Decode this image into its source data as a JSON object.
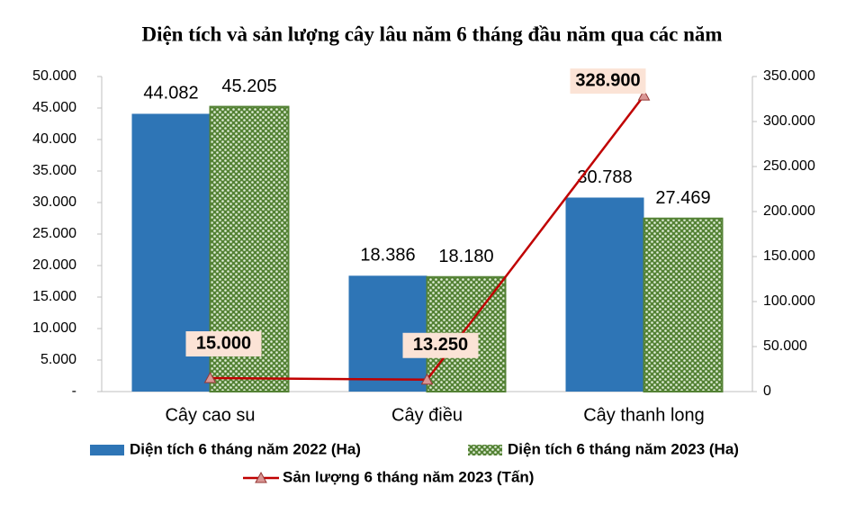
{
  "chart_data": {
    "type": "bar",
    "title": "Diện tích và sản lượng cây lâu năm 6 tháng đầu năm qua các năm",
    "categories": [
      "Cây cao su",
      "Cây điều",
      "Cây thanh long"
    ],
    "series": [
      {
        "name": "Diện tích 6 tháng năm 2022 (Ha)",
        "color": "#2e75b6",
        "values": [
          44082,
          18386,
          30788
        ],
        "value_labels": [
          "44.082",
          "18.386",
          "30.788"
        ]
      },
      {
        "name": "Diện tích 6 tháng năm 2023 (Ha)",
        "color": "#548235",
        "pattern": "dots",
        "values": [
          45205,
          18180,
          27469
        ],
        "value_labels": [
          "45.205",
          "18.180",
          "27.469"
        ]
      },
      {
        "name": "Sản lượng 6 tháng năm 2023 (Tấn)",
        "color": "#c00000",
        "type": "line",
        "axis": "y2",
        "values": [
          15000,
          13250,
          328900
        ],
        "value_labels": [
          "15.000",
          "13.250",
          "328.900"
        ]
      }
    ],
    "ylim": [
      0,
      50000
    ],
    "yticks": [
      {
        "value": 0,
        "label": "-"
      },
      {
        "value": 5000,
        "label": "5.000"
      },
      {
        "value": 10000,
        "label": "10.000"
      },
      {
        "value": 15000,
        "label": "15.000"
      },
      {
        "value": 20000,
        "label": "20.000"
      },
      {
        "value": 25000,
        "label": "25.000"
      },
      {
        "value": 30000,
        "label": "30.000"
      },
      {
        "value": 35000,
        "label": "35.000"
      },
      {
        "value": 40000,
        "label": "40.000"
      },
      {
        "value": 45000,
        "label": "45.000"
      },
      {
        "value": 50000,
        "label": "50.000"
      }
    ],
    "y2lim": [
      0,
      350000
    ],
    "y2ticks": [
      0,
      {
        "value": 50000,
        "label": "50.000"
      },
      {
        "value": 100000,
        "label": "100.000"
      },
      {
        "value": 150000,
        "label": "150.000"
      },
      {
        "value": 200000,
        "label": "200.000"
      },
      {
        "value": 250000,
        "label": "250.000"
      },
      {
        "value": 300000,
        "label": "300.000"
      },
      {
        "value": 350000,
        "label": "350.000"
      }
    ],
    "legend": "bottom"
  }
}
